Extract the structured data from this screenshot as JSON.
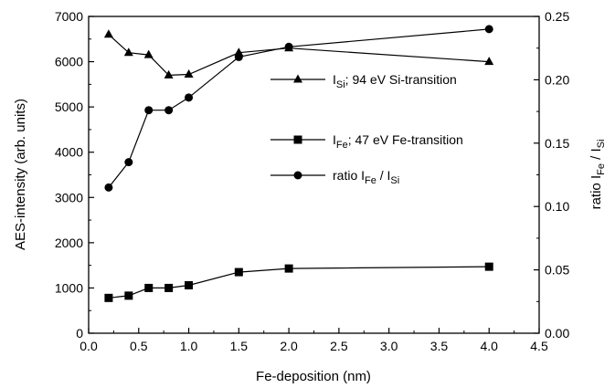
{
  "chart_data": {
    "type": "line",
    "xlabel": "Fe-deposition (nm)",
    "ylabel_left": "AES-intensity (arb. units)",
    "ylabel_right": "ratio  I",
    "ylabel_right_sub1": "Fe",
    "ylabel_right_mid": " / I",
    "ylabel_right_sub2": "Si",
    "xlim": [
      0.0,
      4.5
    ],
    "ylim_left": [
      0,
      7000
    ],
    "ylim_right": [
      0.0,
      0.25
    ],
    "x_ticks": [
      "0.0",
      "0.5",
      "1.0",
      "1.5",
      "2.0",
      "2.5",
      "3.0",
      "3.5",
      "4.0",
      "4.5"
    ],
    "y_left_ticks": [
      "0",
      "1000",
      "2000",
      "3000",
      "4000",
      "5000",
      "6000",
      "7000"
    ],
    "y_right_ticks": [
      "0.00",
      "0.05",
      "0.10",
      "0.15",
      "0.20",
      "0.25"
    ],
    "legend_placement": "right-center",
    "grid": false,
    "series": [
      {
        "key": "si",
        "legend_main": "I",
        "legend_sub": "Si",
        "legend_rest": "; 94 eV Si-transition",
        "marker": "triangle",
        "axis": "left",
        "x": [
          0.2,
          0.4,
          0.6,
          0.8,
          1.0,
          1.5,
          2.0,
          4.0
        ],
        "y": [
          6600,
          6200,
          6150,
          5700,
          5720,
          6200,
          6300,
          6000
        ]
      },
      {
        "key": "fe",
        "legend_main": "I",
        "legend_sub": "Fe",
        "legend_rest": "; 47 eV Fe-transition",
        "marker": "square",
        "axis": "left",
        "x": [
          0.2,
          0.4,
          0.6,
          0.8,
          1.0,
          1.5,
          2.0,
          4.0
        ],
        "y": [
          780,
          830,
          1000,
          1000,
          1060,
          1350,
          1430,
          1470
        ]
      },
      {
        "key": "ratio",
        "legend_main": "ratio I",
        "legend_sub": "Fe",
        "legend_rest": " / I",
        "legend_sub2": "Si",
        "marker": "circle",
        "axis": "right",
        "x": [
          0.2,
          0.4,
          0.6,
          0.8,
          1.0,
          1.5,
          2.0,
          4.0
        ],
        "y": [
          0.115,
          0.135,
          0.176,
          0.176,
          0.186,
          0.218,
          0.226,
          0.24
        ]
      }
    ]
  }
}
